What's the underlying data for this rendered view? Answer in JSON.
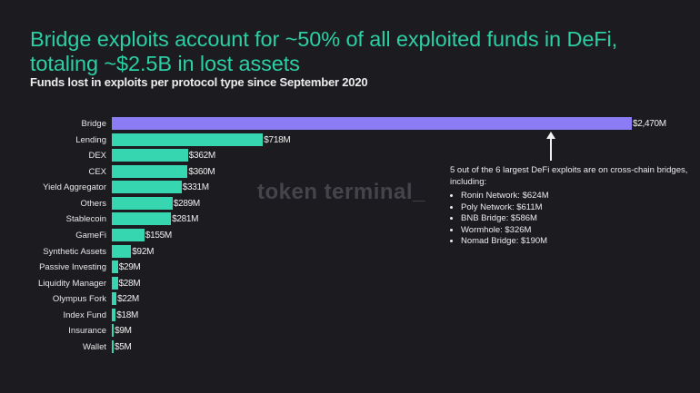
{
  "title_line1": "Bridge exploits account for ~50% of all exploited funds in DeFi,",
  "title_line2": "totaling ~$2.5B in lost assets",
  "subtitle": "Funds lost in exploits per protocol type since September 2020",
  "watermark": "token terminal_",
  "annotation": {
    "text": "5 out of the 6 largest DeFi exploits are on cross-chain bridges, including:",
    "items": [
      "Ronin Network: $624M",
      "Poly Network: $611M",
      "BNB Bridge: $586M",
      "Wormhole: $326M",
      "Nomad Bridge: $190M"
    ]
  },
  "colors": {
    "background": "#1c1b20",
    "title": "#2ccfa3",
    "bar": "#36d6b0",
    "highlight_bar": "#8b7cf6"
  },
  "chart_data": {
    "type": "bar",
    "orientation": "horizontal",
    "title": "Bridge exploits account for ~50% of all exploited funds in DeFi, totaling ~$2.5B in lost assets",
    "subtitle": "Funds lost in exploits per protocol type since September 2020",
    "xlabel": "",
    "ylabel": "",
    "unit": "$M",
    "grid": false,
    "legend": null,
    "categories": [
      "Bridge",
      "Lending",
      "DEX",
      "CEX",
      "Yield Aggregator",
      "Others",
      "Stablecoin",
      "GameFi",
      "Synthetic Assets",
      "Passive Investing",
      "Liquidity Manager",
      "Olympus Fork",
      "Index Fund",
      "Insurance",
      "Wallet"
    ],
    "values": [
      2470,
      718,
      362,
      360,
      331,
      289,
      281,
      155,
      92,
      29,
      28,
      22,
      18,
      9,
      5
    ],
    "labels": [
      "$2,470M",
      "$718M",
      "$362M",
      "$360M",
      "$331M",
      "$289M",
      "$281M",
      "$155M",
      "$92M",
      "$29M",
      "$28M",
      "$22M",
      "$18M",
      "$9M",
      "$5M"
    ],
    "highlight": "Bridge",
    "annotations": [
      "5 out of the 6 largest DeFi exploits are on cross-chain bridges, including: Ronin Network: $624M; Poly Network: $611M; BNB Bridge: $586M; Wormhole: $326M; Nomad Bridge: $190M"
    ]
  }
}
